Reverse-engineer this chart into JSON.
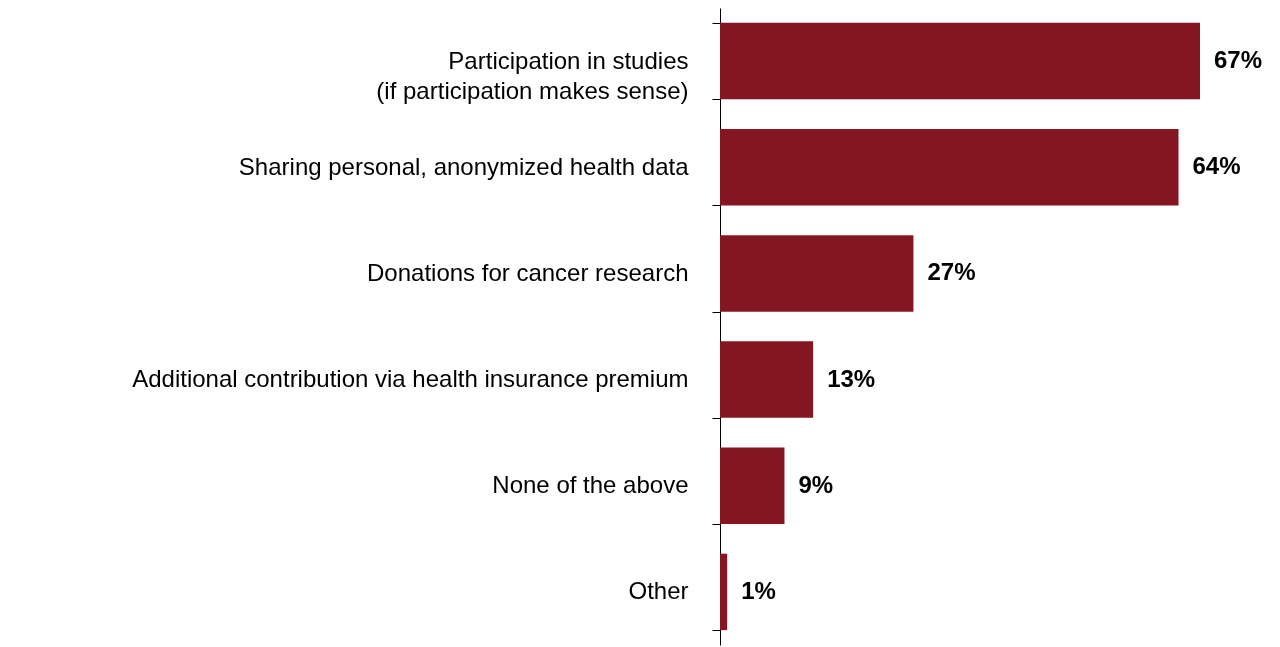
{
  "chart_data": {
    "type": "bar",
    "orientation": "horizontal",
    "categories": [
      "Participation in studies\n(if participation makes sense)",
      "Sharing personal, anonymized health data",
      "Donations for cancer research",
      "Additional contribution via health insurance premium",
      "None of the above",
      "Other"
    ],
    "values": [
      67,
      64,
      27,
      13,
      9,
      1
    ],
    "value_labels": [
      "67%",
      "64%",
      "27%",
      "13%",
      "9%",
      "1%"
    ],
    "color": "#841622",
    "tick_labels": "y"
  }
}
